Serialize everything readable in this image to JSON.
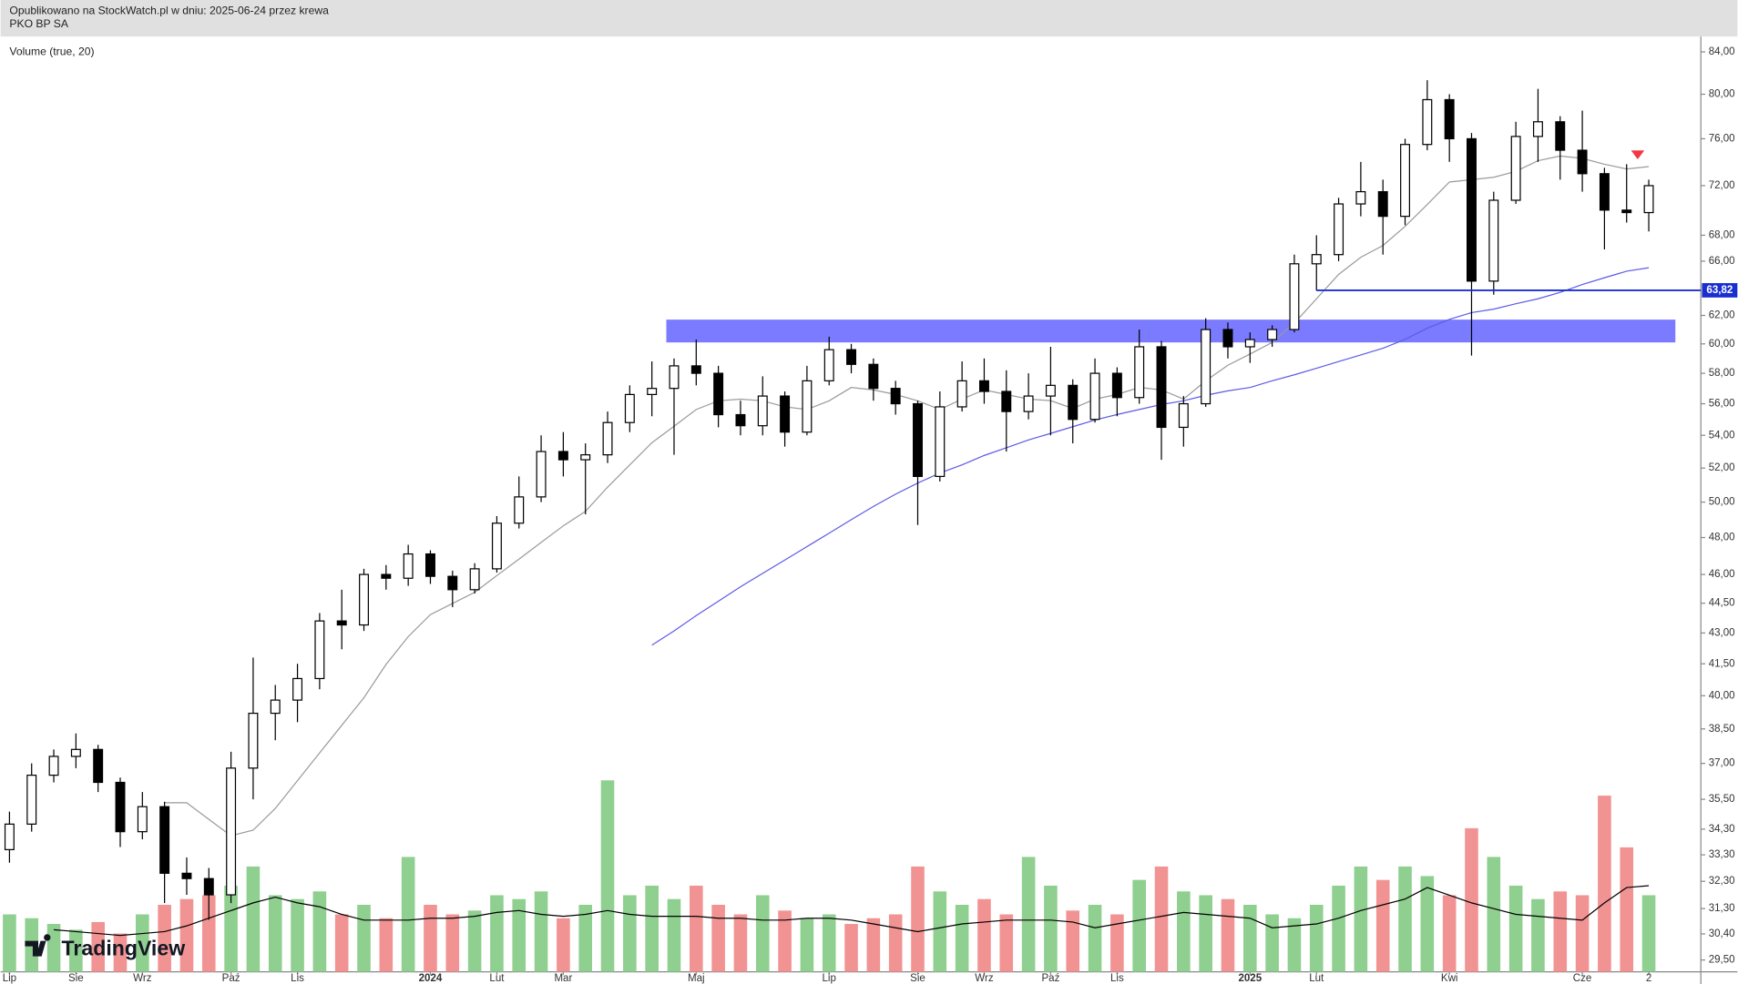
{
  "chart_data": {
    "type": "candlestick",
    "subtitle": "Opublikowano na StockWatch.pl w dniu: 2025-06-24 przez krewa",
    "title": "PKO BP SA",
    "indicator_label": "Volume (true, 20)",
    "watermark": "TradingView",
    "log_scale": true,
    "grid": false,
    "up_color": "#ffffff",
    "down_color": "#000000",
    "wick_color": "#000000",
    "volume_up_color": "#8fcf8f",
    "volume_down_color": "#f29393",
    "categories": [
      "Lip",
      null,
      null,
      "Sie",
      null,
      null,
      "Wrz",
      null,
      null,
      null,
      "Paź",
      null,
      null,
      "Lis",
      null,
      null,
      null,
      null,
      null,
      "2024",
      null,
      null,
      "Lut",
      null,
      null,
      "Mar",
      null,
      null,
      null,
      null,
      null,
      "Maj",
      null,
      null,
      null,
      null,
      null,
      "Lip",
      null,
      null,
      null,
      "Sie",
      null,
      null,
      "Wrz",
      null,
      null,
      "Paź",
      null,
      null,
      "Lis",
      null,
      null,
      null,
      null,
      null,
      "2025",
      null,
      null,
      "Lut",
      null,
      null,
      null,
      null,
      null,
      "Kwi",
      null,
      null,
      null,
      null,
      null,
      "Cze",
      null,
      null,
      "2"
    ],
    "open": [
      33.5,
      34.5,
      36.5,
      37.3,
      37.6,
      36.2,
      34.2,
      35.2,
      32.6,
      32.4,
      31.8,
      36.8,
      39.2,
      39.8,
      40.8,
      43.6,
      43.4,
      46.0,
      45.8,
      47.1,
      45.9,
      45.2,
      46.3,
      48.8,
      50.3,
      53.0,
      52.5,
      52.8,
      54.8,
      56.6,
      57.0,
      58.5,
      58.0,
      55.3,
      54.6,
      56.5,
      54.2,
      57.5,
      59.6,
      58.6,
      57.0,
      56.0,
      51.5,
      55.8,
      57.5,
      56.8,
      55.5,
      56.5,
      57.2,
      55.0,
      58.0,
      56.4,
      59.8,
      54.5,
      56.0,
      61.0,
      59.8,
      60.3,
      61.0,
      65.8,
      66.5,
      70.5,
      71.5,
      69.5,
      75.5,
      79.5,
      76.0,
      64.5,
      70.8,
      76.2,
      77.5,
      75.0,
      73.0,
      70.0,
      69.8
    ],
    "high": [
      35.0,
      37.0,
      37.6,
      38.3,
      37.8,
      36.4,
      35.8,
      35.4,
      33.2,
      32.8,
      37.5,
      41.8,
      40.5,
      41.5,
      44.0,
      45.2,
      46.3,
      46.5,
      47.6,
      47.3,
      46.2,
      46.6,
      49.2,
      51.5,
      54.0,
      54.2,
      53.5,
      55.5,
      57.2,
      58.8,
      59.0,
      60.3,
      58.5,
      56.2,
      57.8,
      56.8,
      58.5,
      60.5,
      60.0,
      59.0,
      57.5,
      56.2,
      56.8,
      58.8,
      59.0,
      58.2,
      58.0,
      59.8,
      57.6,
      59.0,
      58.4,
      61.0,
      60.2,
      56.5,
      61.8,
      61.5,
      60.8,
      61.3,
      66.5,
      68.0,
      71.0,
      74.0,
      72.5,
      76.0,
      81.3,
      80.0,
      76.5,
      71.5,
      77.5,
      80.5,
      78.0,
      78.5,
      73.5,
      73.8,
      72.5
    ],
    "low": [
      33.0,
      34.2,
      36.2,
      36.8,
      35.8,
      33.6,
      33.9,
      31.5,
      31.8,
      30.9,
      31.5,
      35.5,
      38.0,
      38.8,
      40.3,
      42.2,
      43.1,
      45.2,
      45.4,
      45.5,
      44.3,
      45.0,
      46.1,
      48.5,
      50.0,
      51.5,
      49.3,
      52.3,
      54.2,
      55.2,
      52.8,
      57.2,
      54.5,
      54.0,
      54.0,
      53.3,
      54.0,
      57.2,
      58.0,
      56.2,
      55.3,
      48.7,
      51.2,
      55.5,
      56.0,
      53.0,
      55.0,
      54.0,
      53.5,
      54.8,
      55.2,
      56.0,
      52.5,
      53.3,
      55.8,
      59.0,
      58.7,
      59.8,
      60.8,
      63.8,
      66.0,
      69.5,
      66.5,
      68.8,
      75.0,
      74.0,
      59.2,
      63.5,
      70.5,
      74.0,
      72.5,
      71.5,
      66.9,
      69.0,
      68.3
    ],
    "close": [
      34.5,
      36.5,
      37.3,
      37.6,
      36.2,
      34.2,
      35.2,
      32.6,
      32.4,
      31.8,
      36.8,
      39.2,
      39.8,
      40.8,
      43.6,
      43.4,
      46.0,
      45.8,
      47.1,
      45.9,
      45.2,
      46.3,
      48.8,
      50.3,
      53.0,
      52.5,
      52.8,
      54.8,
      56.6,
      57.0,
      58.5,
      58.0,
      55.3,
      54.6,
      56.5,
      54.2,
      57.5,
      59.6,
      58.6,
      57.0,
      56.0,
      51.5,
      55.8,
      57.5,
      56.8,
      55.5,
      56.5,
      57.2,
      55.0,
      58.0,
      56.4,
      59.8,
      54.5,
      56.0,
      61.0,
      59.8,
      60.3,
      61.0,
      65.8,
      66.5,
      70.5,
      71.5,
      69.5,
      75.5,
      79.5,
      76.0,
      64.5,
      70.8,
      76.2,
      77.5,
      75.0,
      73.0,
      70.0,
      69.8,
      72.0
    ],
    "volume": [
      30,
      28,
      25,
      22,
      26,
      20,
      30,
      35,
      38,
      40,
      45,
      55,
      40,
      38,
      42,
      30,
      35,
      28,
      60,
      35,
      30,
      32,
      40,
      38,
      42,
      28,
      35,
      100,
      40,
      45,
      38,
      45,
      35,
      30,
      40,
      32,
      28,
      30,
      25,
      28,
      30,
      55,
      42,
      35,
      38,
      30,
      60,
      45,
      32,
      35,
      30,
      48,
      55,
      42,
      40,
      38,
      35,
      30,
      28,
      35,
      45,
      55,
      48,
      55,
      50,
      40,
      75,
      60,
      45,
      38,
      42,
      40,
      92,
      65,
      40
    ],
    "y2lim": [
      0,
      100
    ],
    "lines": [
      {
        "color": "#9a9a9a",
        "axis": "y",
        "values": [
          null,
          null,
          null,
          null,
          null,
          null,
          null,
          35.36,
          35.36,
          34.69,
          34.04,
          34.26,
          35.13,
          36.27,
          37.45,
          38.66,
          39.91,
          41.47,
          42.82,
          43.92,
          44.49,
          45.06,
          45.94,
          46.82,
          47.73,
          48.65,
          49.47,
          50.87,
          52.19,
          53.54,
          54.57,
          55.63,
          56.19,
          56.3,
          56.19,
          55.8,
          55.63,
          56.19,
          57.06,
          56.9,
          56.6,
          56.19,
          55.63,
          56.3,
          56.9,
          56.6,
          56.3,
          56.2,
          55.7,
          56.3,
          56.6,
          57.06,
          56.9,
          56.3,
          57.5,
          58.54,
          59.3,
          60.1,
          61.45,
          63.2,
          65.0,
          66.3,
          67.2,
          68.7,
          70.45,
          72.3,
          72.5,
          72.7,
          73.2,
          74.1,
          74.5,
          74.3,
          73.8,
          73.4,
          73.6
        ]
      },
      {
        "color": "#5b5be6",
        "axis": "y",
        "values": [
          null,
          null,
          null,
          null,
          null,
          null,
          null,
          null,
          null,
          null,
          null,
          null,
          null,
          null,
          null,
          null,
          null,
          null,
          null,
          null,
          null,
          null,
          null,
          null,
          null,
          null,
          null,
          null,
          null,
          42.4,
          43.1,
          43.87,
          44.6,
          45.35,
          46.06,
          46.77,
          47.5,
          48.24,
          49.0,
          49.75,
          50.46,
          51.11,
          51.7,
          52.19,
          52.76,
          53.23,
          53.71,
          54.12,
          54.54,
          54.96,
          55.31,
          55.63,
          55.95,
          56.19,
          56.55,
          56.84,
          57.06,
          57.5,
          57.9,
          58.34,
          58.79,
          59.24,
          59.7,
          60.31,
          61.09,
          61.72,
          62.2,
          62.45,
          62.84,
          63.2,
          63.67,
          64.25,
          64.75,
          65.24,
          65.5
        ]
      },
      {
        "color": "#000000",
        "axis": "y2",
        "values": [
          null,
          null,
          22,
          21,
          20,
          19,
          20,
          21,
          24,
          28,
          32,
          36,
          39,
          36,
          34,
          30,
          27,
          27,
          27,
          28,
          28,
          29,
          31,
          32,
          30,
          29,
          30,
          32,
          30,
          29,
          29,
          29,
          28,
          28,
          27,
          27,
          28,
          28,
          27,
          25,
          23,
          21,
          23,
          25,
          26,
          27,
          27,
          27,
          26,
          23,
          25,
          27,
          29,
          31,
          30,
          29,
          28,
          23,
          24,
          25,
          28,
          32,
          35,
          38,
          44,
          40,
          36,
          33,
          30,
          29,
          28,
          27,
          36,
          44,
          45
        ]
      }
    ],
    "zone": {
      "low": 60.1,
      "high": 61.7,
      "start": 30,
      "end": 74,
      "color": "#7b7bff"
    },
    "price_line": {
      "value": 63.82,
      "label": "63,82",
      "start": 59,
      "color": "#1a2fd0"
    },
    "signal": {
      "index": 74,
      "value": 74.6,
      "color": "#f23645"
    },
    "ylim": [
      29.1,
      85.5
    ],
    "yticks": [
      {
        "value": 84,
        "label": "84,00"
      },
      {
        "value": 80,
        "label": "80,00"
      },
      {
        "value": 76,
        "label": "76,00"
      },
      {
        "value": 72,
        "label": "72,00"
      },
      {
        "value": 68,
        "label": "68,00"
      },
      {
        "value": 66,
        "label": "66,00"
      },
      {
        "value": 62,
        "label": "62,00"
      },
      {
        "value": 60,
        "label": "60,00"
      },
      {
        "value": 58,
        "label": "58,00"
      },
      {
        "value": 56,
        "label": "56,00"
      },
      {
        "value": 54,
        "label": "54,00"
      },
      {
        "value": 52,
        "label": "52,00"
      },
      {
        "value": 50,
        "label": "50,00"
      },
      {
        "value": 48,
        "label": "48,00"
      },
      {
        "value": 46,
        "label": "46,00"
      },
      {
        "value": 44.5,
        "label": "44,50"
      },
      {
        "value": 43,
        "label": "43,00"
      },
      {
        "value": 41.5,
        "label": "41,50"
      },
      {
        "value": 40,
        "label": "40,00"
      },
      {
        "value": 38.5,
        "label": "38,50"
      },
      {
        "value": 37,
        "label": "37,00"
      },
      {
        "value": 35.5,
        "label": "35,50"
      },
      {
        "value": 34.3,
        "label": "34,30"
      },
      {
        "value": 33.3,
        "label": "33,30"
      },
      {
        "value": 32.3,
        "label": "32,30"
      },
      {
        "value": 31.3,
        "label": "31,30"
      },
      {
        "value": 30.4,
        "label": "30,40"
      },
      {
        "value": 29.5,
        "label": "29,50"
      }
    ]
  }
}
